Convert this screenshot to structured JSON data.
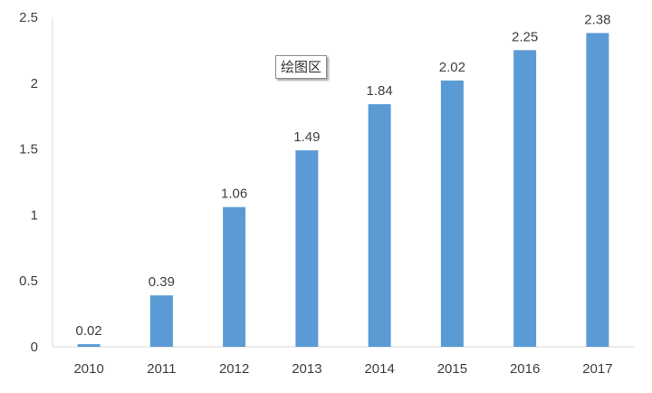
{
  "chart_data": {
    "type": "bar",
    "categories": [
      "2010",
      "2011",
      "2012",
      "2013",
      "2014",
      "2015",
      "2016",
      "2017"
    ],
    "values": [
      0.02,
      0.39,
      1.06,
      1.49,
      1.84,
      2.02,
      2.25,
      2.38
    ],
    "data_labels": [
      "0.02",
      "0.39",
      "1.06",
      "1.49",
      "1.84",
      "2.02",
      "2.25",
      "2.38"
    ],
    "y_ticks": [
      "0",
      "0.5",
      "1",
      "1.5",
      "2",
      "2.5"
    ],
    "y_tick_values": [
      0,
      0.5,
      1,
      1.5,
      2,
      2.5
    ],
    "ylim": [
      0,
      2.5
    ],
    "title": "",
    "xlabel": "",
    "ylabel": "",
    "grid": false,
    "legend": "none",
    "bar_color": "#5B9BD5"
  },
  "tooltip": {
    "text": "绘图区"
  }
}
